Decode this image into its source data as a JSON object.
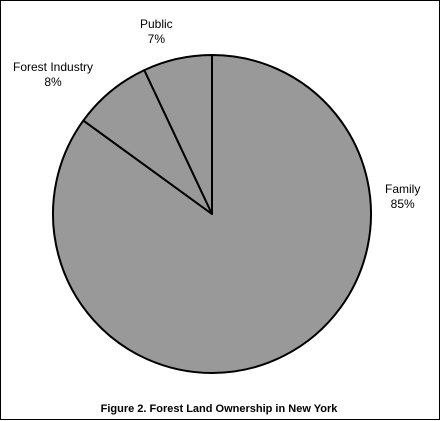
{
  "chart_data": {
    "type": "pie",
    "title": "Figure 2. Forest Land Ownership in New York",
    "slices": [
      {
        "label": "Family",
        "value": 85,
        "value_label": "85%"
      },
      {
        "label": "Forest Industry",
        "value": 8,
        "value_label": "8%"
      },
      {
        "label": "Public",
        "value": 7,
        "value_label": "7%"
      }
    ],
    "start_angle": "12 o'clock",
    "direction": "clockwise",
    "legend": "none",
    "colors": {
      "fill": "#999999",
      "stroke": "#000000"
    }
  }
}
